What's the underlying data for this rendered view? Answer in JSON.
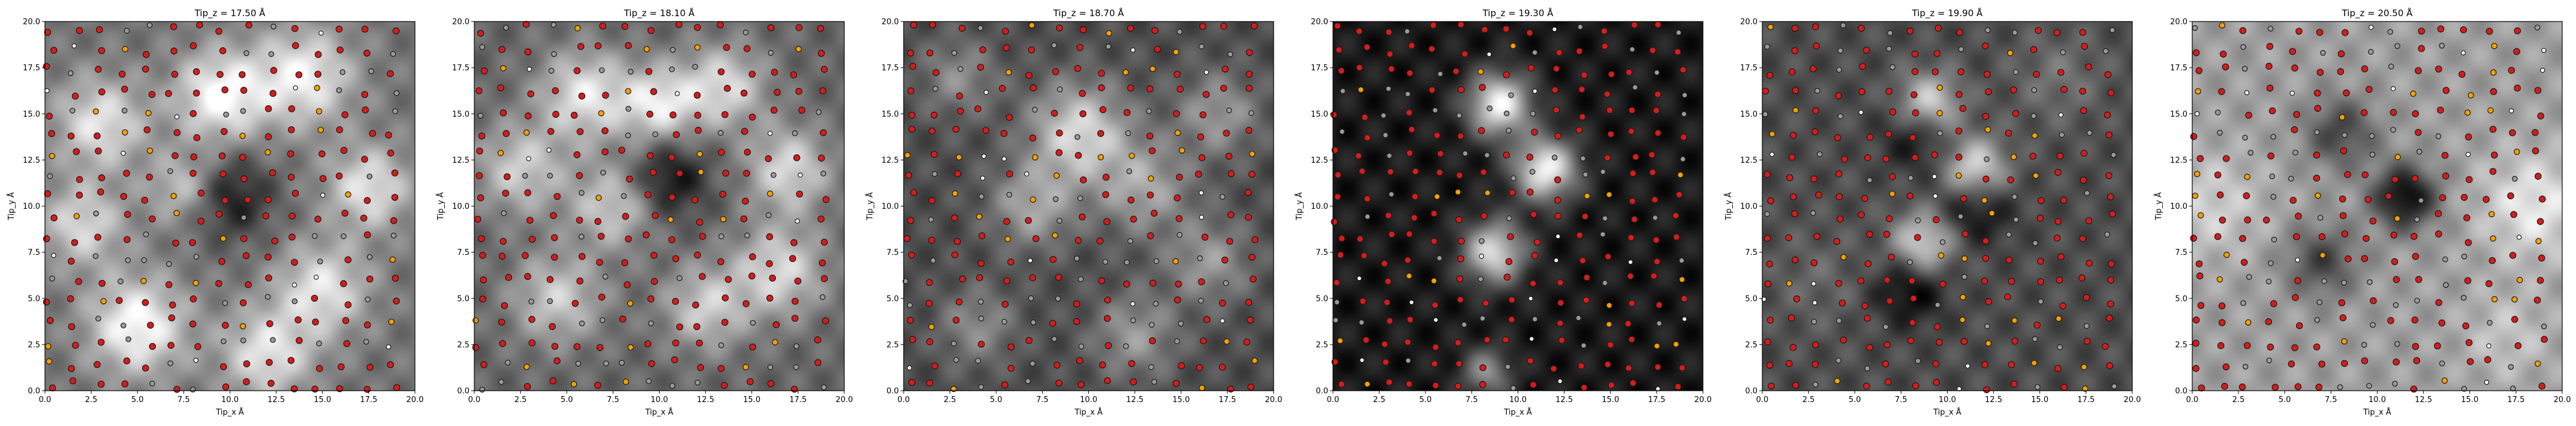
{
  "figure": {
    "background": "#ffffff"
  },
  "colors": {
    "atom_red": "#d81b1b",
    "atom_orange": "#f5a000",
    "atom_grey": "#9a9a9a",
    "atom_white": "#ffffff",
    "atom_edge": "#1a1a1a"
  },
  "chart_data": [
    {
      "type": "heatmap",
      "title": "Tip_z = 17.50 Å",
      "xlabel": "Tip_x Å",
      "ylabel": "Tip_y Å",
      "xlim": [
        0,
        20
      ],
      "ylim": [
        0,
        20
      ],
      "xticks": [
        "0.0",
        "2.5",
        "5.0",
        "7.5",
        "10.0",
        "12.5",
        "15.0",
        "17.5",
        "20.0"
      ],
      "yticks": [
        "0.0",
        "2.5",
        "5.0",
        "7.5",
        "10.0",
        "12.5",
        "15.0",
        "17.5",
        "20.0"
      ],
      "colormap": "gray",
      "overlay": "atom positions (scatter)",
      "image": {
        "bg": 0.45,
        "blobs": [
          [
            9.5,
            16,
            2.6,
            0.55
          ],
          [
            14,
            17,
            2.8,
            0.5
          ],
          [
            3,
            14.5,
            2.6,
            0.45
          ],
          [
            5,
            3.5,
            2.8,
            0.55
          ],
          [
            15,
            5.5,
            2.6,
            0.45
          ],
          [
            10,
            10.5,
            2.4,
            -0.35
          ],
          [
            12,
            2,
            2.6,
            0.45
          ],
          [
            17.5,
            11,
            2.4,
            0.45
          ],
          [
            2,
            9,
            2.4,
            0.4
          ],
          [
            7.5,
            11,
            2,
            0.35
          ]
        ]
      }
    },
    {
      "type": "heatmap",
      "title": "Tip_z = 18.10 Å",
      "xlabel": "Tip_x Å",
      "ylabel": "Tip_y Å",
      "xlim": [
        0,
        20
      ],
      "ylim": [
        0,
        20
      ],
      "xticks": [
        "0.0",
        "2.5",
        "5.0",
        "7.5",
        "10.0",
        "12.5",
        "15.0",
        "17.5",
        "20.0"
      ],
      "yticks": [
        "0.0",
        "2.5",
        "5.0",
        "7.5",
        "10.0",
        "12.5",
        "15.0",
        "17.5",
        "20.0"
      ],
      "colormap": "gray",
      "overlay": "atom positions (scatter)",
      "image": {
        "bg": 0.4,
        "blobs": [
          [
            6,
            16,
            2.6,
            0.5
          ],
          [
            10,
            15.5,
            2.2,
            0.5
          ],
          [
            2.5,
            12,
            2.6,
            0.4
          ],
          [
            13.5,
            16.5,
            2.4,
            0.45
          ],
          [
            17,
            12,
            2.4,
            0.45
          ],
          [
            7.5,
            10,
            2.4,
            0.4
          ],
          [
            16.5,
            6.5,
            2.6,
            0.45
          ],
          [
            4.5,
            5,
            2.6,
            0.4
          ],
          [
            12.5,
            4.5,
            2.4,
            0.4
          ],
          [
            10.5,
            11.5,
            2.2,
            -0.35
          ]
        ]
      }
    },
    {
      "type": "heatmap",
      "title": "Tip_z = 18.70 Å",
      "xlabel": "Tip_x Å",
      "ylabel": "Tip_y Å",
      "xlim": [
        0,
        20
      ],
      "ylim": [
        0,
        20
      ],
      "xticks": [
        "0.0",
        "2.5",
        "5.0",
        "7.5",
        "10.0",
        "12.5",
        "15.0",
        "17.5",
        "20.0"
      ],
      "yticks": [
        "0.0",
        "2.5",
        "5.0",
        "7.5",
        "10.0",
        "12.5",
        "15.0",
        "17.5",
        "20.0"
      ],
      "colormap": "gray",
      "overlay": "atom positions (scatter)",
      "image": {
        "bg": 0.3,
        "blobs": [
          [
            9.5,
            14,
            2.8,
            0.55
          ],
          [
            13,
            11,
            2.6,
            0.35
          ],
          [
            7,
            10,
            2.4,
            0.35
          ],
          [
            12.5,
            3,
            2.4,
            0.3
          ],
          [
            4,
            3.5,
            2.2,
            0.25
          ],
          [
            17,
            15,
            2.4,
            0.3
          ],
          [
            16.5,
            7,
            2.4,
            0.3
          ],
          [
            3,
            17,
            2.2,
            0.25
          ]
        ]
      }
    },
    {
      "type": "heatmap",
      "title": "Tip_z = 19.30 Å",
      "xlabel": "Tip_x Å",
      "ylabel": "Tip_y Å",
      "xlim": [
        0,
        20
      ],
      "ylim": [
        0,
        20
      ],
      "xticks": [
        "0.0",
        "2.5",
        "5.0",
        "7.5",
        "10.0",
        "12.5",
        "15.0",
        "17.5",
        "20.0"
      ],
      "yticks": [
        "0.0",
        "2.5",
        "5.0",
        "7.5",
        "10.0",
        "12.5",
        "15.0",
        "17.5",
        "20.0"
      ],
      "colormap": "gray",
      "overlay": "atom positions (scatter)",
      "image": {
        "bg": 0.1,
        "blobs": [
          [
            9,
            15.5,
            1.8,
            0.85
          ],
          [
            11.5,
            12,
            1.8,
            0.85
          ],
          [
            8.7,
            7.5,
            1.8,
            0.75
          ],
          [
            8.3,
            1,
            1.4,
            0.45
          ]
        ]
      }
    },
    {
      "type": "heatmap",
      "title": "Tip_z = 19.90 Å",
      "xlabel": "Tip_x Å",
      "ylabel": "Tip_y Å",
      "xlim": [
        0,
        20
      ],
      "ylim": [
        0,
        20
      ],
      "xticks": [
        "0.0",
        "2.5",
        "5.0",
        "7.5",
        "10.0",
        "12.5",
        "15.0",
        "17.5",
        "20.0"
      ],
      "yticks": [
        "0.0",
        "2.5",
        "5.0",
        "7.5",
        "10.0",
        "12.5",
        "15.0",
        "17.5",
        "20.0"
      ],
      "colormap": "gray",
      "overlay": "atom positions (scatter)",
      "image": {
        "bg": 0.3,
        "blobs": [
          [
            9,
            15.5,
            1.8,
            0.6
          ],
          [
            11.5,
            12,
            1.8,
            0.6
          ],
          [
            8.7,
            8,
            1.8,
            0.55
          ],
          [
            8.5,
            14,
            2,
            -0.3
          ],
          [
            11.5,
            10,
            2,
            -0.3
          ],
          [
            8,
            5.5,
            2,
            -0.3
          ],
          [
            16,
            17,
            2.6,
            0.15
          ],
          [
            3,
            6,
            2.8,
            0.1
          ]
        ]
      }
    },
    {
      "type": "heatmap",
      "title": "Tip_z = 20.50 Å",
      "xlabel": "Tip_x Å",
      "ylabel": "Tip_y Å",
      "xlim": [
        0,
        20
      ],
      "ylim": [
        0,
        20
      ],
      "xticks": [
        "0.0",
        "2.5",
        "5.0",
        "7.5",
        "10.0",
        "12.5",
        "15.0",
        "17.5",
        "20.0"
      ],
      "yticks": [
        "0.0",
        "2.5",
        "5.0",
        "7.5",
        "10.0",
        "12.5",
        "15.0",
        "17.5",
        "20.0"
      ],
      "colormap": "gray",
      "overlay": "atom positions (scatter)",
      "image": {
        "bg": 0.62,
        "blobs": [
          [
            11.5,
            10.5,
            1.8,
            -0.6
          ],
          [
            8,
            14,
            2,
            -0.35
          ],
          [
            7,
            7,
            2,
            -0.35
          ],
          [
            18.5,
            10,
            3,
            0.3
          ],
          [
            1,
            10,
            3,
            0.2
          ],
          [
            17,
            3,
            2.6,
            0.15
          ]
        ]
      }
    }
  ]
}
